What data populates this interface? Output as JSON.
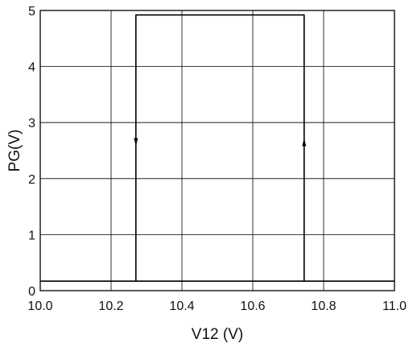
{
  "chart_data": {
    "type": "line",
    "title": "",
    "xlabel": "V12 (V)",
    "ylabel": "PG(V)",
    "xlim": [
      10.0,
      11.0
    ],
    "ylim": [
      0,
      5
    ],
    "x_ticks": [
      10.0,
      10.2,
      10.4,
      10.6,
      10.8,
      11.0
    ],
    "x_tick_labels": [
      "10.0",
      "10.2",
      "10.4",
      "10.6",
      "10.8",
      "11.0"
    ],
    "y_ticks": [
      0,
      1,
      2,
      3,
      4,
      5
    ],
    "y_tick_labels": [
      "0",
      "1",
      "2",
      "3",
      "4",
      "5"
    ],
    "grid": true,
    "legend": "none",
    "line_color": "#000000",
    "grid_color": "#000000",
    "series": [
      {
        "x": [
          10.0,
          10.745,
          10.745,
          10.27,
          10.27,
          11.0
        ],
        "y": [
          0.17,
          0.17,
          4.92,
          4.92,
          0.17,
          0.17
        ]
      }
    ],
    "arrows": [
      {
        "x": 10.27,
        "y": 2.65,
        "direction": "down"
      },
      {
        "x": 10.745,
        "y": 2.65,
        "direction": "up"
      }
    ]
  }
}
